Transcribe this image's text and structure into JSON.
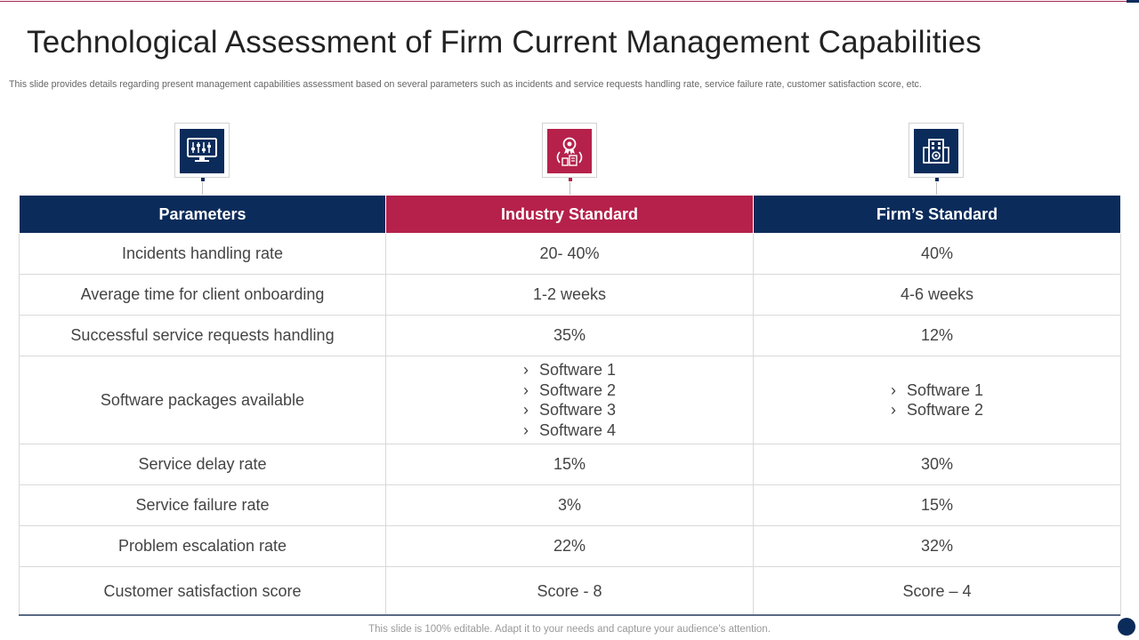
{
  "title": "Technological Assessment of Firm Current Management Capabilities",
  "subtitle": "This slide provides details regarding present management capabilities assessment based on several parameters such as incidents and service requests handling rate, service failure rate, customer satisfaction score, etc.",
  "colors": {
    "navy": "#0b2b5a",
    "crimson": "#b5214a"
  },
  "icons": [
    "monitor-sliders-icon",
    "award-building-icon",
    "office-building-icon"
  ],
  "table": {
    "headers": [
      "Parameters",
      "Industry Standard",
      "Firm’s Standard"
    ],
    "rows": [
      {
        "parameter": "Incidents handling rate",
        "industry": "20- 40%",
        "firm": "40%"
      },
      {
        "parameter": "Average time for client onboarding",
        "industry": "1-2 weeks",
        "firm": "4-6 weeks"
      },
      {
        "parameter": "Successful service requests handling",
        "industry": "35%",
        "firm": "12%"
      },
      {
        "parameter": "Software packages available",
        "industry_list": [
          "Software 1",
          "Software 2",
          "Software 3",
          "Software 4"
        ],
        "firm_list": [
          "Software 1",
          "Software 2"
        ]
      },
      {
        "parameter": "Service delay rate",
        "industry": "15%",
        "firm": "30%"
      },
      {
        "parameter": "Service failure rate",
        "industry": "3%",
        "firm": "15%"
      },
      {
        "parameter": "Problem escalation rate",
        "industry": "22%",
        "firm": "32%"
      },
      {
        "parameter": "Customer satisfaction score",
        "industry": "Score - 8",
        "firm": "Score – 4"
      }
    ]
  },
  "footer": "This slide is 100% editable. Adapt it to your needs and capture your audience’s attention."
}
